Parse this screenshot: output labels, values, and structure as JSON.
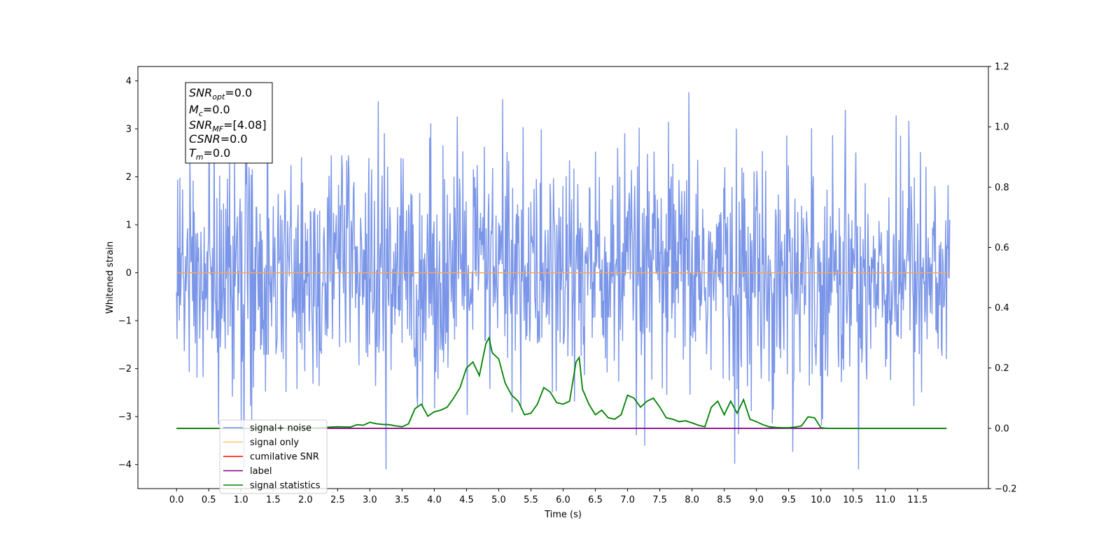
{
  "chart_data": {
    "type": "line",
    "xlabel": "Time (s)",
    "ylabel": "Whitened strain",
    "xlim": [
      -0.6,
      12.6
    ],
    "ylim": [
      -4.5,
      4.3
    ],
    "y2lim": [
      -0.2,
      1.2
    ],
    "x_ticks": [
      0.0,
      0.5,
      1.0,
      1.5,
      2.0,
      2.5,
      3.0,
      3.5,
      4.0,
      4.5,
      5.0,
      5.5,
      6.0,
      6.5,
      7.0,
      7.5,
      8.0,
      8.5,
      9.0,
      9.5,
      10.0,
      10.5,
      11.0,
      11.5
    ],
    "x_tick_labels": [
      "0.0",
      "0.5",
      "1.0",
      "1.5",
      "2.0",
      "2.5",
      "3.0",
      "3.5",
      "4.0",
      "4.5",
      "5.0",
      "5.5",
      "6.0",
      "6.5",
      "7.0",
      "7.5",
      "8.0",
      "8.5",
      "9.0",
      "9.5",
      "10.0",
      "10.5",
      "11.0",
      "11.5"
    ],
    "y_ticks": [
      -4,
      -3,
      -2,
      -1,
      0,
      1,
      2,
      3,
      4
    ],
    "y_tick_labels": [
      "−4",
      "−3",
      "−2",
      "−1",
      "0",
      "1",
      "2",
      "3",
      "4"
    ],
    "y2_ticks": [
      -0.2,
      0.0,
      0.2,
      0.4,
      0.6,
      0.8,
      1.0,
      1.2
    ],
    "y2_tick_labels": [
      "−0.2",
      "0.0",
      "0.2",
      "0.4",
      "0.6",
      "0.8",
      "1.0",
      "1.2"
    ],
    "info_box": [
      {
        "main": "SNR",
        "sub": "opt",
        "value": "=0.0"
      },
      {
        "main": "M",
        "sub": "c",
        "value": "=0.0"
      },
      {
        "main": "SNR",
        "sub": "MF",
        "value": "=[4.08]"
      },
      {
        "main": "CSNR",
        "sub": "",
        "value": "=0.0"
      },
      {
        "main": "T",
        "sub": "m",
        "value": "=0.0"
      }
    ],
    "legend": {
      "placement": "lower-left",
      "entries": [
        {
          "label": "signal+ noise",
          "color": "#7b96e8"
        },
        {
          "label": "signal only",
          "color": "#ffc36b"
        },
        {
          "label": "cumilative SNR",
          "color": "#ff0000"
        },
        {
          "label": "label",
          "color": "#800080"
        },
        {
          "label": "signal statistics",
          "color": "#008000"
        }
      ]
    },
    "noise_series": {
      "name": "signal+ noise",
      "color": "#7b96e8",
      "x_range": [
        0.0,
        12.0
      ],
      "sample_count": 1400,
      "typical_range": [
        -1.6,
        1.6
      ],
      "max": 3.9,
      "min": -4.1
    },
    "signal_series": {
      "name": "signal only",
      "color": "#f0a860",
      "x": [
        0.0,
        12.0
      ],
      "y": [
        0.0,
        0.0
      ]
    },
    "label_series": {
      "name": "label",
      "color": "#800080",
      "axis": "y2",
      "x": [
        0.0,
        11.95
      ],
      "y": [
        0.0,
        0.0
      ]
    },
    "statistics_series": {
      "name": "signal statistics",
      "color": "#008000",
      "axis": "y2",
      "x": [
        0.0,
        2.0,
        2.5,
        2.7,
        2.8,
        2.9,
        3.0,
        3.1,
        3.2,
        3.3,
        3.4,
        3.5,
        3.6,
        3.7,
        3.8,
        3.9,
        4.0,
        4.1,
        4.2,
        4.3,
        4.4,
        4.5,
        4.6,
        4.7,
        4.8,
        4.85,
        4.9,
        5.0,
        5.1,
        5.2,
        5.3,
        5.4,
        5.5,
        5.6,
        5.7,
        5.8,
        5.9,
        6.0,
        6.1,
        6.2,
        6.25,
        6.3,
        6.4,
        6.5,
        6.6,
        6.7,
        6.8,
        6.9,
        7.0,
        7.1,
        7.2,
        7.3,
        7.4,
        7.5,
        7.6,
        7.7,
        7.8,
        7.9,
        8.0,
        8.1,
        8.2,
        8.3,
        8.4,
        8.5,
        8.6,
        8.7,
        8.8,
        8.9,
        9.0,
        9.1,
        9.2,
        9.3,
        9.4,
        9.5,
        9.6,
        9.7,
        9.8,
        9.9,
        10.0,
        10.1,
        10.5,
        11.0,
        11.95
      ],
      "y": [
        0.0,
        0.0,
        0.005,
        0.004,
        0.012,
        0.01,
        0.02,
        0.015,
        0.013,
        0.012,
        0.008,
        0.005,
        0.015,
        0.065,
        0.08,
        0.04,
        0.055,
        0.06,
        0.07,
        0.1,
        0.135,
        0.2,
        0.22,
        0.175,
        0.28,
        0.3,
        0.25,
        0.23,
        0.15,
        0.11,
        0.09,
        0.045,
        0.05,
        0.08,
        0.135,
        0.12,
        0.085,
        0.08,
        0.09,
        0.22,
        0.235,
        0.13,
        0.08,
        0.045,
        0.06,
        0.035,
        0.03,
        0.045,
        0.11,
        0.1,
        0.07,
        0.09,
        0.1,
        0.07,
        0.035,
        0.03,
        0.022,
        0.025,
        0.018,
        0.01,
        0.005,
        0.07,
        0.09,
        0.045,
        0.09,
        0.05,
        0.095,
        0.03,
        0.022,
        0.012,
        0.005,
        0.003,
        0.002,
        0.002,
        0.004,
        0.008,
        0.038,
        0.035,
        0.002,
        0.0,
        0.0,
        0.0,
        0.0
      ]
    }
  }
}
